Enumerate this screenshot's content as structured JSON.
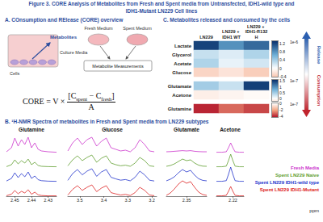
{
  "title": [
    "Figure 3. CORE Analysis of Metabolites from Fresh and Spent media from Untransfected, IDH1-wild type and",
    "IDH1-Mutant LN229 Cell lines"
  ],
  "panel_a": {
    "title": "A. COnsumption and RElease (CORE) overview",
    "labels": {
      "metabolites": "Metabolites",
      "culture_media": "Culture Media",
      "cells": "Cells",
      "fresh": "Fresh Medium",
      "spent": "Spent Medium",
      "measurements": "Metabolite Measurements"
    },
    "formula": {
      "left": "CORE = V ×",
      "numerator": [
        {
          "text": "[C"
        },
        {
          "sub": "spent"
        },
        {
          "text": " − C"
        },
        {
          "sub": "fresh"
        },
        {
          "text": "]"
        }
      ],
      "denominator": "A"
    }
  },
  "chart_data": [
    {
      "type": "heatmap",
      "title": "C. Metabolites released and consumed by the cells",
      "columns": [
        "LN229",
        "LN229 + IDH1 WT",
        "LN229 + IDH1-R132H"
      ],
      "blocks": [
        {
          "rows": [
            "Lactate",
            "Glycerol",
            "Acetate",
            "Glucose"
          ],
          "values": [
            [
              1.2,
              0.8,
              1.0
            ],
            [
              0.25,
              0.15,
              0.35
            ],
            [
              0.35,
              0.1,
              0.2
            ],
            [
              -0.3,
              -0.2,
              -0.35
            ]
          ],
          "range": [
            -0.4,
            1.3
          ],
          "ticks": [
            -0.4,
            0,
            0.4,
            0.8,
            1.2
          ],
          "scale_label": "1e-6"
        },
        {
          "rows": [
            "Glutamate",
            "Acetone"
          ],
          "values": [
            [
              0.5,
              0.3,
              1.5
            ],
            [
              -0.15,
              -0.1,
              -0.05
            ]
          ],
          "range": [
            -0.2,
            1.6
          ],
          "ticks": [
            0,
            0.5,
            1,
            1.5
          ],
          "scale_label": "1e-7"
        },
        {
          "rows": [
            "Glutamine"
          ],
          "values": [
            [
              -4,
              -3,
              -3.5
            ]
          ],
          "range": [
            -4.2,
            0
          ],
          "ticks": [
            -4,
            -2,
            0
          ],
          "scale_label": "1e-7"
        }
      ],
      "arrow": {
        "top": "Release",
        "bottom": "Consumption"
      }
    },
    {
      "type": "line",
      "title": "B. ¹H-NMR Spectra of metabolites in Fresh and Spent media from LN229 subtypes",
      "x_label": "ppm",
      "tick_labels": "x",
      "legend": "right",
      "series": [
        {
          "name": "Fresh Media",
          "color": "#cc33cc"
        },
        {
          "name": "Spent LN229 Naive",
          "color": "#5f9e2f"
        },
        {
          "name": "Spent LN229 IDH1-wild type",
          "color": "#2233cc"
        },
        {
          "name": "Spent LN229 IDH1-Mutant",
          "color": "#dd2222"
        }
      ],
      "panels": [
        {
          "name": "Glutamine",
          "xlim": [
            2.455,
            2.425
          ],
          "xticks": [
            2.45,
            2.44,
            2.43
          ],
          "ylim": [
            0,
            1
          ],
          "x": [
            2.455,
            2.452,
            2.45,
            2.448,
            2.446,
            2.444,
            2.442,
            2.44,
            2.438,
            2.436,
            2.434,
            2.43,
            2.425
          ],
          "values": [
            [
              0.05,
              0.3,
              0.9,
              0.4,
              0.8,
              0.5,
              0.95,
              0.3,
              0.6,
              0.2,
              0.1,
              0.05,
              0.02
            ],
            [
              0.03,
              0.15,
              0.45,
              0.2,
              0.4,
              0.25,
              0.5,
              0.15,
              0.3,
              0.1,
              0.05,
              0.03,
              0.02
            ],
            [
              0.04,
              0.2,
              0.55,
              0.25,
              0.5,
              0.3,
              0.6,
              0.2,
              0.35,
              0.12,
              0.06,
              0.03,
              0.02
            ],
            [
              0.03,
              0.12,
              0.35,
              0.15,
              0.3,
              0.2,
              0.4,
              0.12,
              0.25,
              0.08,
              0.04,
              0.02,
              0.02
            ]
          ]
        },
        {
          "name": "Glucose",
          "xlim": [
            3.55,
            3.18
          ],
          "xticks": [
            3.5,
            3.4,
            3.3,
            3.2
          ],
          "ylim": [
            0,
            1
          ],
          "x": [
            3.55,
            3.53,
            3.51,
            3.49,
            3.47,
            3.45,
            3.43,
            3.41,
            3.39,
            3.37,
            3.35,
            3.33,
            3.31,
            3.29,
            3.27,
            3.25,
            3.23,
            3.21,
            3.19
          ],
          "values": [
            [
              0.1,
              0.6,
              0.9,
              0.5,
              0.8,
              0.95,
              0.4,
              0.7,
              0.9,
              0.3,
              0.2,
              0.1,
              0.15,
              0.05,
              0.3,
              0.8,
              0.5,
              0.1,
              0.05
            ],
            [
              0.08,
              0.45,
              0.7,
              0.4,
              0.6,
              0.75,
              0.3,
              0.55,
              0.7,
              0.25,
              0.15,
              0.08,
              0.12,
              0.05,
              0.25,
              0.6,
              0.4,
              0.08,
              0.04
            ],
            [
              0.08,
              0.5,
              0.75,
              0.42,
              0.65,
              0.8,
              0.33,
              0.6,
              0.75,
              0.27,
              0.17,
              0.09,
              0.13,
              0.05,
              0.27,
              0.65,
              0.42,
              0.09,
              0.04
            ],
            [
              0.07,
              0.42,
              0.65,
              0.36,
              0.55,
              0.7,
              0.28,
              0.5,
              0.65,
              0.22,
              0.14,
              0.07,
              0.11,
              0.04,
              0.22,
              0.55,
              0.36,
              0.07,
              0.03
            ]
          ]
        },
        {
          "name": "Glutamate",
          "xlim": [
            2.37,
            2.33
          ],
          "xticks": [
            2.35
          ],
          "ylim": [
            0,
            1
          ],
          "x": [
            2.37,
            2.366,
            2.362,
            2.358,
            2.354,
            2.35,
            2.346,
            2.342,
            2.338,
            2.334,
            2.33
          ],
          "values": [
            [
              0.05,
              0.06,
              0.08,
              0.1,
              0.12,
              0.1,
              0.12,
              0.08,
              0.06,
              0.05,
              0.05
            ],
            [
              0.05,
              0.1,
              0.2,
              0.35,
              0.5,
              0.4,
              0.45,
              0.25,
              0.12,
              0.06,
              0.05
            ],
            [
              0.05,
              0.15,
              0.3,
              0.55,
              0.75,
              0.6,
              0.7,
              0.4,
              0.18,
              0.08,
              0.05
            ],
            [
              0.05,
              0.2,
              0.45,
              0.75,
              0.95,
              0.8,
              0.9,
              0.55,
              0.25,
              0.1,
              0.05
            ]
          ]
        },
        {
          "name": "Acetone",
          "xlim": [
            2.235,
            2.21
          ],
          "xticks": [
            2.22
          ],
          "ylim": [
            0,
            1
          ],
          "x": [
            2.235,
            2.23,
            2.226,
            2.224,
            2.222,
            2.22,
            2.218,
            2.214,
            2.21
          ],
          "values": [
            [
              0.02,
              0.02,
              0.05,
              0.3,
              0.6,
              0.3,
              0.05,
              0.02,
              0.02
            ],
            [
              0.02,
              0.02,
              0.06,
              0.4,
              0.8,
              0.4,
              0.06,
              0.02,
              0.02
            ],
            [
              0.02,
              0.02,
              0.06,
              0.45,
              0.9,
              0.45,
              0.06,
              0.02,
              0.02
            ],
            [
              0.02,
              0.02,
              0.05,
              0.3,
              0.6,
              0.3,
              0.05,
              0.02,
              0.02
            ]
          ]
        }
      ]
    }
  ]
}
